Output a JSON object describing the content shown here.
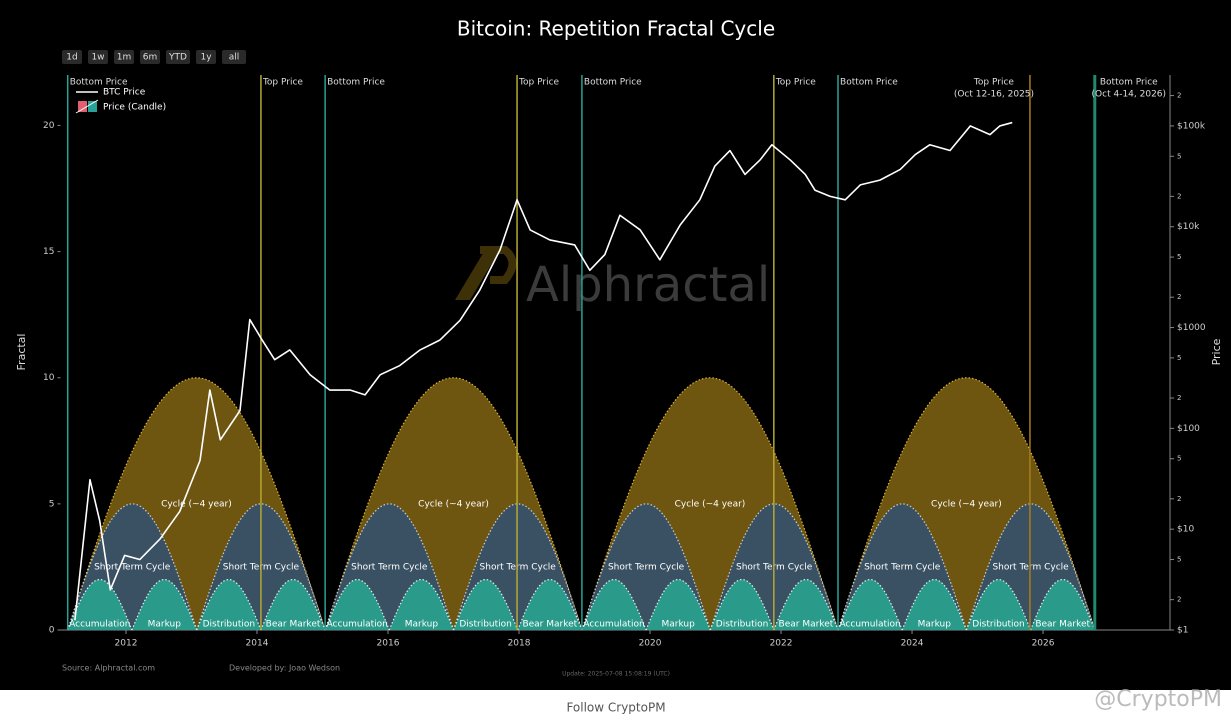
{
  "chart_data": {
    "type": "fractal-cycle",
    "title": "Bitcoin: Repetition Fractal Cycle",
    "range_buttons": [
      "1d",
      "1w",
      "1m",
      "6m",
      "YTD",
      "1y",
      "all"
    ],
    "y_label": "Fractal",
    "y2_label": "Price",
    "xlim": [
      2011.0,
      2027.9
    ],
    "xticks": [
      2012,
      2014,
      2016,
      2018,
      2020,
      2022,
      2024,
      2026
    ],
    "ylim": [
      0,
      22
    ],
    "yticks": [
      0,
      5,
      10,
      15,
      20
    ],
    "y2lim": [
      1,
      320000
    ],
    "y2log": true,
    "y2ticks": [
      {
        "value": 1,
        "label": "$1"
      },
      2,
      5,
      {
        "value": 10,
        "label": "$10"
      },
      {
        "value": 20,
        "label": "2"
      },
      {
        "value": 50,
        "label": "5"
      },
      {
        "value": 100,
        "label": "$100"
      },
      {
        "value": 200,
        "label": "2"
      },
      {
        "value": 500,
        "label": "5"
      },
      {
        "value": 1000,
        "label": "$1000"
      },
      {
        "value": 2000,
        "label": "2"
      },
      {
        "value": 5000,
        "label": "5"
      },
      {
        "value": 10000,
        "label": "$10k"
      },
      {
        "value": 20000,
        "label": "2"
      },
      {
        "value": 50000,
        "label": "5"
      },
      {
        "value": 100000,
        "label": "$100k"
      },
      {
        "value": 200000,
        "label": "2"
      }
    ],
    "grid": false,
    "candle_legend": "Price (Candle)",
    "cycles": [
      {
        "label": "Cycle (~4 year)",
        "color": "#6e5510",
        "outline": "#d9b23a",
        "peak": 10,
        "bounds": [
          2011.11,
          2015.04,
          2018.96,
          2022.87,
          2026.79
        ]
      },
      {
        "label": "Short Term Cycle",
        "color": "#3a5163",
        "outline": "#c8d0d8",
        "peak": 5,
        "bounds": [
          2011.11,
          2013.08,
          2015.04,
          2017.0,
          2018.96,
          2020.92,
          2022.87,
          2024.83,
          2026.79
        ]
      },
      {
        "labels": [
          "Accumulation",
          "Markup",
          "Distribution",
          "Bear Market"
        ],
        "color": "#2a9a8a",
        "outline": "#e0f0ec",
        "peak": 2,
        "bounds": [
          2011.11,
          2012.09,
          2013.08,
          2014.06,
          2015.04,
          2016.02,
          2017.0,
          2017.98,
          2018.96,
          2019.94,
          2020.92,
          2021.89,
          2022.87,
          2023.85,
          2024.83,
          2025.81,
          2026.79
        ]
      }
    ],
    "events": [
      {
        "x": 2011.11,
        "label": "Bottom Price",
        "color": "#2aa198"
      },
      {
        "x": 2014.06,
        "label": "Top Price",
        "color": "#b5a832"
      },
      {
        "x": 2015.04,
        "label": "Bottom Price",
        "color": "#2aa198"
      },
      {
        "x": 2017.97,
        "label": "Top Price",
        "color": "#b5a832"
      },
      {
        "x": 2018.96,
        "label": "Bottom Price",
        "color": "#2aa198"
      },
      {
        "x": 2021.89,
        "label": "Top Price",
        "color": "#b5a832"
      },
      {
        "x": 2022.87,
        "label": "Bottom Price",
        "color": "#2aa198"
      },
      {
        "x": 2025.8,
        "label": "Top Price",
        "date": "(Oct 12-16, 2025)",
        "color": "#a87c1c"
      },
      {
        "x": 2026.79,
        "label": "Bottom Price",
        "date": "(Oct 4-14, 2026)",
        "color": "#1f8a70"
      }
    ],
    "series": [
      {
        "name": "BTC Price",
        "color": "#ffffff",
        "axis": "y2",
        "x": [
          2011.22,
          2011.45,
          2011.6,
          2011.76,
          2011.98,
          2012.21,
          2012.52,
          2012.82,
          2013.13,
          2013.28,
          2013.44,
          2013.74,
          2013.89,
          2014.08,
          2014.27,
          2014.5,
          2014.81,
          2015.11,
          2015.42,
          2015.65,
          2015.88,
          2016.18,
          2016.49,
          2016.79,
          2017.1,
          2017.4,
          2017.71,
          2017.89,
          2017.97,
          2018.17,
          2018.47,
          2018.85,
          2019.08,
          2019.31,
          2019.54,
          2019.85,
          2020.15,
          2020.46,
          2020.76,
          2020.99,
          2021.22,
          2021.45,
          2021.68,
          2021.86,
          2022.14,
          2022.37,
          2022.52,
          2022.75,
          2022.98,
          2023.21,
          2023.51,
          2023.82,
          2024.05,
          2024.27,
          2024.58,
          2024.89,
          2025.19,
          2025.34,
          2025.53
        ],
        "values": [
          1.25,
          31,
          12,
          2.5,
          5.5,
          5,
          8,
          15,
          48,
          240,
          77,
          150,
          1200,
          750,
          480,
          600,
          340,
          240,
          240,
          215,
          340,
          420,
          600,
          750,
          1180,
          2350,
          5900,
          13000,
          18500,
          9300,
          7400,
          6600,
          3700,
          5300,
          13000,
          9300,
          4700,
          10400,
          18500,
          40000,
          57000,
          33000,
          46000,
          65000,
          46000,
          33000,
          23000,
          20000,
          18500,
          26000,
          29000,
          37000,
          52000,
          65000,
          57000,
          100000,
          82000,
          100000,
          108000
        ]
      }
    ],
    "watermark": "Alphractal",
    "source": "Source: Alphractal.com",
    "credit": "Developed by: Joao Wedson",
    "update": "Update: 2025-07-08 15:08:19 (UTC)",
    "footer": "Follow CryptoPM",
    "handle": "@CryptoPM"
  }
}
